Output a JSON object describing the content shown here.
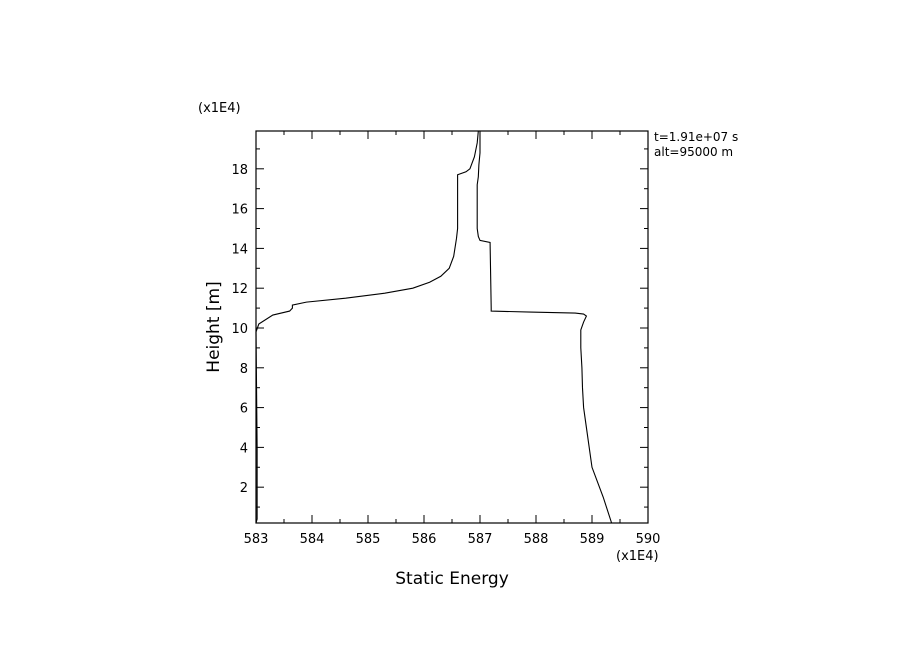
{
  "chart_data": {
    "type": "line",
    "title": "",
    "xlabel": "Static Energy",
    "ylabel": "Height [m]",
    "x_multiplier_label": "(x1E4)",
    "y_multiplier_label": "(x1E4)",
    "xlim": [
      583,
      590
    ],
    "ylim": [
      0.2,
      19.9
    ],
    "x_ticks": [
      583,
      584,
      585,
      586,
      587,
      588,
      589,
      590
    ],
    "y_ticks": [
      2,
      4,
      6,
      8,
      10,
      12,
      14,
      16,
      18
    ],
    "x_tick_labels": [
      "583",
      "584",
      "585",
      "586",
      "587",
      "588",
      "589",
      "590"
    ],
    "y_tick_labels": [
      "2",
      "4",
      "6",
      "8",
      "10",
      "12",
      "14",
      "16",
      "18"
    ],
    "annotations": [
      "t=1.91e+07 s",
      "alt=95000 m"
    ],
    "grid": false,
    "legend": "none",
    "series": [
      {
        "x": [
          589.35,
          589.2,
          589.0,
          588.95,
          588.9,
          588.85,
          588.83,
          588.82,
          588.8,
          588.8,
          588.85,
          588.9,
          588.85,
          588.7,
          587.9,
          587.2,
          587.2,
          587.18,
          587.0,
          586.97,
          586.95,
          586.95,
          586.97,
          586.98,
          587.0,
          587.0
        ],
        "y": [
          0.2,
          1.5,
          3.0,
          4.0,
          5.0,
          6.0,
          7.0,
          8.0,
          9.0,
          9.9,
          10.3,
          10.6,
          10.7,
          10.75,
          10.8,
          10.85,
          11.0,
          14.3,
          14.4,
          14.6,
          15.0,
          17.2,
          17.6,
          18.2,
          18.8,
          19.9
        ]
      },
      {
        "x": [
          583.0,
          583.02,
          583.02,
          583.0,
          583.05,
          583.3,
          583.6,
          583.65,
          583.65,
          583.9,
          584.6,
          585.3,
          585.8,
          586.1,
          586.3,
          586.45,
          586.53,
          586.58,
          586.6,
          586.6,
          586.75,
          586.82,
          586.86,
          586.9,
          586.95,
          586.97
        ],
        "y": [
          0.2,
          0.4,
          4.0,
          9.8,
          10.2,
          10.65,
          10.85,
          11.0,
          11.15,
          11.3,
          11.5,
          11.75,
          12.0,
          12.3,
          12.6,
          13.0,
          13.6,
          14.5,
          15.0,
          17.7,
          17.85,
          18.0,
          18.3,
          18.6,
          19.3,
          19.9
        ]
      }
    ]
  }
}
